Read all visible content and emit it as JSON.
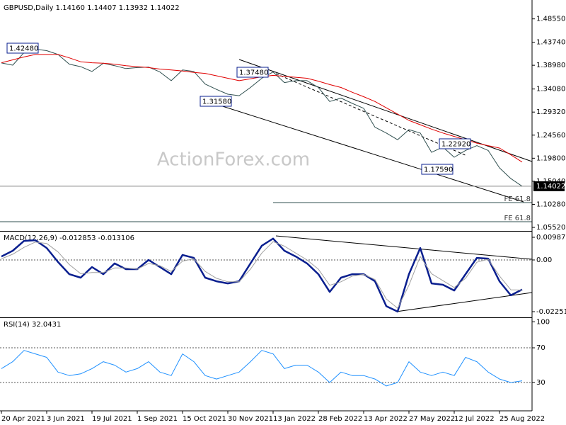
{
  "chart_data": [
    {
      "type": "line",
      "title": "GBPUSD,Daily  1.14160 1.14407 1.13932 1.14022",
      "watermark": "ActionForex.com",
      "x": [
        0,
        8,
        16,
        24,
        32,
        40,
        48,
        56,
        64,
        72,
        80,
        88,
        96,
        104,
        112,
        120,
        128,
        136,
        144,
        152,
        160,
        168,
        176,
        184,
        192,
        200,
        208,
        216,
        224,
        232,
        240,
        248,
        256,
        264,
        272,
        280,
        288,
        296,
        304,
        312,
        320,
        328,
        336,
        344,
        352,
        360,
        368
      ],
      "xlim": [
        0,
        375
      ],
      "xticks": [
        {
          "value": 0,
          "label": "20 Apr 2021"
        },
        {
          "value": 32,
          "label": "3 Jun 2021"
        },
        {
          "value": 64,
          "label": "19 Jul 2021"
        },
        {
          "value": 96,
          "label": "1 Sep 2021"
        },
        {
          "value": 128,
          "label": "15 Oct 2021"
        },
        {
          "value": 160,
          "label": "30 Nov 2021"
        },
        {
          "value": 192,
          "label": "13 Jan 2022"
        },
        {
          "value": 224,
          "label": "28 Feb 2022"
        },
        {
          "value": 256,
          "label": "13 Apr 2022"
        },
        {
          "value": 288,
          "label": "27 May 2022"
        },
        {
          "value": 320,
          "label": "12 Jul 2022"
        },
        {
          "value": 352,
          "label": "25 Aug 2022"
        }
      ],
      "series": [
        {
          "color": "#2f4f4f",
          "values": [
            1.3946,
            1.39,
            1.416,
            1.423,
            1.42,
            1.412,
            1.392,
            1.387,
            1.377,
            1.394,
            1.389,
            1.383,
            1.385,
            1.386,
            1.376,
            1.358,
            1.38,
            1.377,
            1.351,
            1.34,
            1.33,
            1.327,
            1.344,
            1.363,
            1.376,
            1.354,
            1.358,
            1.358,
            1.344,
            1.315,
            1.322,
            1.311,
            1.301,
            1.262,
            1.25,
            1.236,
            1.257,
            1.25,
            1.21,
            1.221,
            1.2,
            1.214,
            1.224,
            1.214,
            1.178,
            1.156,
            1.1402
          ]
        },
        {
          "color": "#e00000",
          "values": [
            1.395,
            1.401,
            1.407,
            1.412,
            1.412,
            1.412,
            1.405,
            1.397,
            1.395,
            1.394,
            1.392,
            1.389,
            1.387,
            1.385,
            1.382,
            1.38,
            1.378,
            1.375,
            1.373,
            1.368,
            1.363,
            1.358,
            1.362,
            1.366,
            1.369,
            1.367,
            1.365,
            1.363,
            1.357,
            1.35,
            1.344,
            1.334,
            1.325,
            1.315,
            1.302,
            1.289,
            1.276,
            1.267,
            1.258,
            1.25,
            1.243,
            1.236,
            1.229,
            1.224,
            1.219,
            1.205,
            1.19
          ]
        }
      ],
      "ylim": [
        1.0494,
        1.5201
      ],
      "yticks": [
        {
          "value": 1.4855,
          "label": "1.48550"
        },
        {
          "value": 1.4374,
          "label": "1.43740"
        },
        {
          "value": 1.3898,
          "label": "1.38980"
        },
        {
          "value": 1.3408,
          "label": "1.34080"
        },
        {
          "value": 1.2932,
          "label": "1.29320"
        },
        {
          "value": 1.2456,
          "label": "1.24560"
        },
        {
          "value": 1.198,
          "label": "1.19800"
        },
        {
          "value": 1.1504,
          "label": "1.15040"
        },
        {
          "value": 1.1028,
          "label": "1.10280"
        },
        {
          "value": 1.0552,
          "label": "1.05520"
        }
      ],
      "last": 1.14022,
      "annotations": [
        "1.42480",
        "1.37480",
        "1.31580",
        "1.22920",
        "1.17590"
      ],
      "fe_labels": [
        "FE 61.8",
        "FE 61.8"
      ]
    },
    {
      "type": "line",
      "title": "MACD(12,26,9) -0.012853 -0.013106",
      "series": [
        {
          "color": "#0a1f8f",
          "values": [
            0.0015,
            0.004,
            0.0083,
            0.0086,
            0.0052,
            -0.0009,
            -0.0062,
            -0.0077,
            -0.0031,
            -0.0062,
            -0.0015,
            -0.004,
            -0.004,
            0,
            -0.0031,
            -0.0062,
            0.0022,
            0.0009,
            -0.0077,
            -0.0093,
            -0.0102,
            -0.0093,
            -0.0015,
            0.0062,
            0.0093,
            0.004,
            0.0015,
            -0.0015,
            -0.0062,
            -0.0139,
            -0.0077,
            -0.0062,
            -0.0062,
            -0.0093,
            -0.0201,
            -0.0225,
            -0.0062,
            0.0052,
            -0.0102,
            -0.0108,
            -0.0133,
            -0.0062,
            0.0009,
            0.0006,
            -0.0093,
            -0.0154,
            -0.0129
          ]
        },
        {
          "color": "#a0a0a0",
          "values": [
            0.0005,
            0.0025,
            0.0055,
            0.0078,
            0.0072,
            0.0035,
            -0.002,
            -0.006,
            -0.0055,
            -0.0055,
            -0.0035,
            -0.0035,
            -0.004,
            -0.0015,
            -0.0025,
            -0.005,
            -0.0005,
            0.0005,
            -0.005,
            -0.008,
            -0.0095,
            -0.0095,
            -0.004,
            0.003,
            0.008,
            0.006,
            0.003,
            0.0,
            -0.004,
            -0.011,
            -0.0095,
            -0.007,
            -0.0063,
            -0.0085,
            -0.017,
            -0.021,
            -0.011,
            0.0015,
            -0.006,
            -0.009,
            -0.012,
            -0.008,
            -0.001,
            0.0003,
            -0.007,
            -0.013,
            -0.0131
          ]
        }
      ],
      "ylim": [
        -0.02468,
        0.01203
      ],
      "yticks": [
        0.009872,
        {
          "value": 0,
          "label": "0.00"
        },
        -0.022516
      ]
    },
    {
      "type": "line",
      "title": "RSI(14) 32.0431",
      "series": [
        {
          "color": "#1e90ff",
          "values": [
            46,
            54,
            67,
            63,
            59,
            42,
            38,
            40,
            46,
            54,
            50,
            42,
            46,
            54,
            42,
            38,
            63,
            54,
            38,
            34,
            38,
            42,
            54,
            67,
            63,
            46,
            50,
            50,
            42,
            30,
            42,
            38,
            38,
            34,
            26,
            30,
            54,
            42,
            38,
            42,
            38,
            59,
            54,
            42,
            34,
            30,
            32
          ]
        }
      ],
      "ylim": [
        -1,
        103.5
      ],
      "yticks": [
        100,
        70,
        30
      ]
    }
  ]
}
